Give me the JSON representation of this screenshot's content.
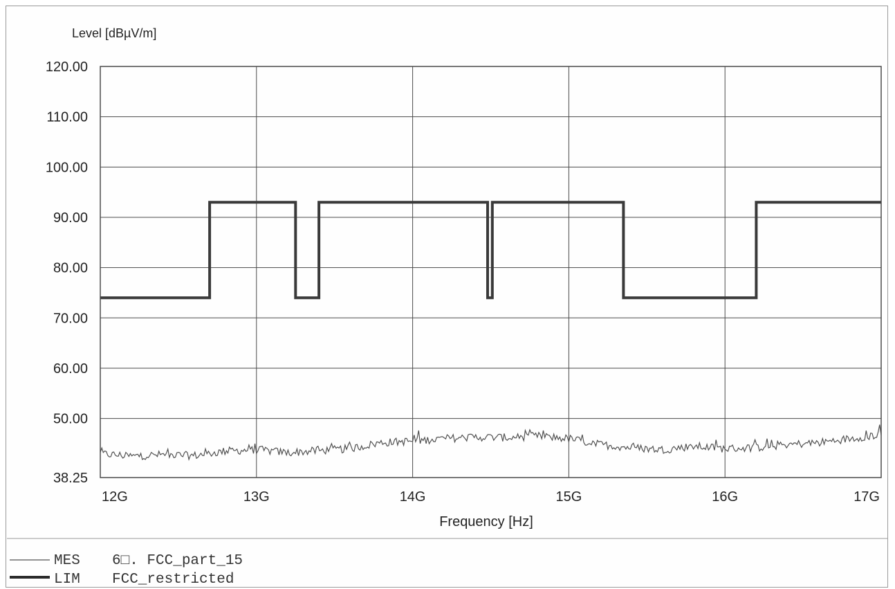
{
  "chart_data": {
    "type": "line",
    "ylabel": "Level [dBµV/m]",
    "xlabel": "Frequency [Hz]",
    "xlim": [
      12000000000,
      17000000000
    ],
    "ylim": [
      38.25,
      120
    ],
    "x_ticks": [
      {
        "value": 12000000000,
        "label": "12G"
      },
      {
        "value": 13000000000,
        "label": "13G"
      },
      {
        "value": 14000000000,
        "label": "14G"
      },
      {
        "value": 15000000000,
        "label": "15G"
      },
      {
        "value": 16000000000,
        "label": "16G"
      },
      {
        "value": 17000000000,
        "label": "17G"
      }
    ],
    "y_ticks": [
      {
        "value": 120,
        "label": "120.00"
      },
      {
        "value": 110,
        "label": "110.00"
      },
      {
        "value": 100,
        "label": "100.00"
      },
      {
        "value": 90,
        "label": "90.00"
      },
      {
        "value": 80,
        "label": "80.00"
      },
      {
        "value": 70,
        "label": "70.00"
      },
      {
        "value": 60,
        "label": "60.00"
      },
      {
        "value": 50,
        "label": "50.00"
      },
      {
        "value": 38.25,
        "label": "38.25"
      }
    ],
    "grid": true,
    "legend_position": "bottom-left",
    "legend": [
      {
        "code": "MES",
        "label": "6□. FCC_part_15"
      },
      {
        "code": "LIM",
        "label": "FCC_restricted"
      }
    ],
    "series": [
      {
        "name": "LIM",
        "style": "thick",
        "step_x": [
          12000000000,
          12700000000,
          12700000000,
          13250000000,
          13250000000,
          13400000000,
          13400000000,
          14480000000,
          14480000000,
          14510000000,
          14510000000,
          15350000000,
          15350000000,
          16200000000,
          16200000000,
          17000000000
        ],
        "step_y": [
          74.0,
          74.0,
          93.0,
          93.0,
          74.0,
          74.0,
          93.0,
          93.0,
          74.0,
          74.0,
          93.0,
          93.0,
          74.0,
          74.0,
          93.0,
          93.0
        ]
      },
      {
        "name": "MES",
        "style": "thin",
        "x": [
          12000000000,
          12200000000,
          12400000000,
          12600000000,
          12800000000,
          13000000000,
          13200000000,
          13400000000,
          13600000000,
          13800000000,
          14000000000,
          14200000000,
          14400000000,
          14600000000,
          14800000000,
          15000000000,
          15200000000,
          15400000000,
          15600000000,
          15800000000,
          16000000000,
          16200000000,
          16400000000,
          16600000000,
          16800000000,
          17000000000
        ],
        "y": [
          43.0,
          42.5,
          42.8,
          42.6,
          43.5,
          43.8,
          43.2,
          43.6,
          44.0,
          45.2,
          45.5,
          46.0,
          46.3,
          46.2,
          46.5,
          46.0,
          44.8,
          44.2,
          43.8,
          44.5,
          44.0,
          44.2,
          44.8,
          45.2,
          46.0,
          46.8
        ]
      }
    ]
  },
  "colors": {
    "grid": "#4a4a4a",
    "lim": "#3a3a3a",
    "mes": "#505050",
    "frame": "#9a9a9a"
  }
}
